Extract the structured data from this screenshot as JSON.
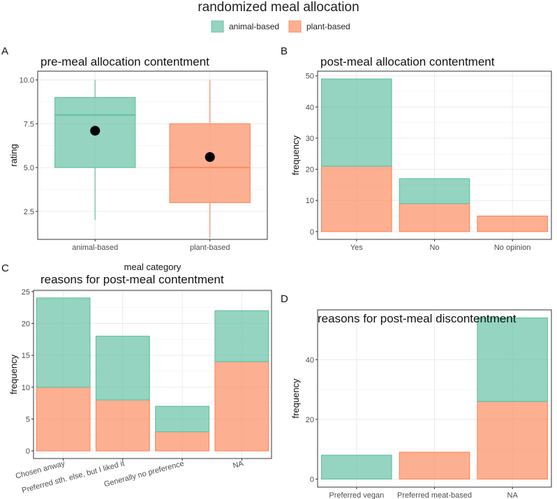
{
  "legend": {
    "title": "randomized meal allocation",
    "entries": [
      "animal-based",
      "plant-based"
    ],
    "colors": {
      "animal-based": "#66c2a5",
      "plant-based": "#fc8d62"
    }
  },
  "chart_data": [
    {
      "panel": "A",
      "type": "box",
      "title": "pre-meal allocation contentment",
      "xlabel": "meal category",
      "ylabel": "rating",
      "ylim": [
        0.9,
        10.5
      ],
      "yticks": [
        2.5,
        5.0,
        7.5,
        10.0
      ],
      "ytick_labels": [
        "2.5",
        "5.0",
        "7.5",
        "10.0"
      ],
      "categories": [
        "animal-based",
        "plant-based"
      ],
      "boxes": [
        {
          "name": "animal-based",
          "min": 2,
          "q1": 5,
          "median": 8,
          "q3": 9,
          "max": 10,
          "mean": 7.1
        },
        {
          "name": "plant-based",
          "min": 1,
          "q1": 3,
          "median": 5,
          "q3": 7.5,
          "max": 10,
          "mean": 5.6
        }
      ]
    },
    {
      "panel": "B",
      "type": "stacked-bar",
      "title": "post-meal allocation contentment",
      "xlabel": "",
      "ylabel": "frequency",
      "ylim": [
        -2.5,
        51.5
      ],
      "yticks": [
        0,
        10,
        20,
        30,
        40,
        50
      ],
      "categories": [
        "Yes",
        "No",
        "No opinion"
      ],
      "series": [
        {
          "name": "plant-based",
          "values": [
            21,
            9,
            5
          ]
        },
        {
          "name": "animal-based",
          "values": [
            28,
            8,
            0
          ]
        }
      ]
    },
    {
      "panel": "C",
      "type": "stacked-bar",
      "title": "reasons for post-meal contentment",
      "xlabel": "",
      "ylabel": "frequency",
      "ylim": [
        -1.2,
        25.2
      ],
      "yticks": [
        0,
        5,
        10,
        15,
        20,
        25
      ],
      "categories": [
        "Chosen anway",
        "Preferred sth. else, but I liked it",
        "Generally no preference",
        "NA"
      ],
      "series": [
        {
          "name": "plant-based",
          "values": [
            10,
            8,
            3,
            14
          ]
        },
        {
          "name": "animal-based",
          "values": [
            14,
            10,
            4,
            8
          ]
        }
      ]
    },
    {
      "panel": "D",
      "type": "stacked-bar",
      "title": "reasons for post-meal discontentment",
      "xlabel": "",
      "ylabel": "frequency",
      "ylim": [
        -2.7,
        56.7
      ],
      "yticks": [
        0,
        20,
        40
      ],
      "categories": [
        "Preferred vegan",
        "Preferred meat-based",
        "NA"
      ],
      "series": [
        {
          "name": "plant-based",
          "values": [
            0,
            9,
            26
          ]
        },
        {
          "name": "animal-based",
          "values": [
            8,
            0,
            28
          ]
        }
      ]
    }
  ]
}
